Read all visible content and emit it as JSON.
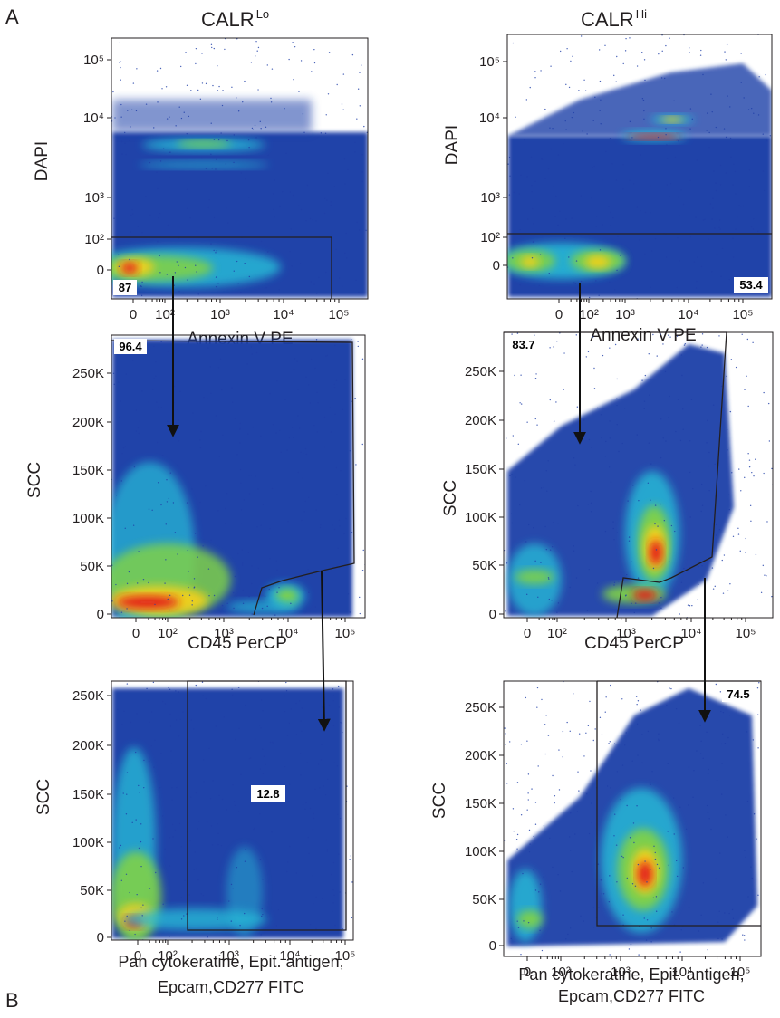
{
  "figure": {
    "panel_labels": {
      "top": "A",
      "bottom": "B"
    },
    "columns": [
      {
        "title": "CALR",
        "title_sup": "Lo"
      },
      {
        "title": "CALR",
        "title_sup": "Hi"
      }
    ]
  },
  "chart_data": [
    {
      "type": "scatter",
      "column": "CALR Lo",
      "xlabel": "Annexin V PE",
      "ylabel": "DAPI",
      "x_ticks": [
        "0",
        "10²",
        "10³",
        "10⁴",
        "10⁵"
      ],
      "y_ticks": [
        "0",
        "10²",
        "10³",
        "10⁴",
        "10⁵"
      ],
      "x_scale": "biexponential",
      "y_scale": "biexponential",
      "gate_value": "87",
      "gate_value_position": "bottom-left"
    },
    {
      "type": "scatter",
      "column": "CALR Hi",
      "xlabel": "Annexin V PE",
      "ylabel": "DAPI",
      "x_ticks": [
        "0",
        "10²",
        "10³",
        "10⁴",
        "10⁵"
      ],
      "y_ticks": [
        "0",
        "10²",
        "10³",
        "10⁴",
        "10⁵"
      ],
      "x_scale": "biexponential",
      "y_scale": "biexponential",
      "gate_value": "53.4",
      "gate_value_position": "bottom-right"
    },
    {
      "type": "scatter",
      "column": "CALR Lo",
      "xlabel": "CD45 PerCP",
      "ylabel": "SCC",
      "x_ticks": [
        "0",
        "10²",
        "10³",
        "10⁴",
        "10⁵"
      ],
      "y_ticks": [
        "0",
        "50K",
        "100K",
        "150K",
        "200K",
        "250K"
      ],
      "x_scale": "biexponential",
      "y_scale": "linear",
      "gate_value": "96.4",
      "gate_value_position": "top-left"
    },
    {
      "type": "scatter",
      "column": "CALR Hi",
      "xlabel": "CD45 PerCP",
      "ylabel": "SCC",
      "x_ticks": [
        "0",
        "10²",
        "10³",
        "10⁴",
        "10⁵"
      ],
      "y_ticks": [
        "0",
        "50K",
        "100K",
        "150K",
        "200K",
        "250K"
      ],
      "x_scale": "biexponential",
      "y_scale": "linear",
      "gate_value": "83.7",
      "gate_value_position": "top-left"
    },
    {
      "type": "scatter",
      "column": "CALR Lo",
      "xlabel_lines": [
        "Pan cytokeratine, Epit. antigen,",
        "Epcam,CD277 FITC"
      ],
      "ylabel": "SCC",
      "x_ticks": [
        "0",
        "10²",
        "10³",
        "10⁴",
        "10⁵"
      ],
      "y_ticks": [
        "0",
        "50K",
        "100K",
        "150K",
        "200K",
        "250K"
      ],
      "x_scale": "biexponential",
      "y_scale": "linear",
      "gate_value": "12.8",
      "gate_value_position": "center"
    },
    {
      "type": "scatter",
      "column": "CALR Hi",
      "xlabel_lines": [
        "Pan cytokeratine, Epit. antigen,",
        "Epcam,CD277 FITC"
      ],
      "ylabel": "SCC",
      "x_ticks": [
        "0",
        "10²",
        "10³",
        "10⁴",
        "10⁵"
      ],
      "y_ticks": [
        "0",
        "50K",
        "100K",
        "150K",
        "200K",
        "250K"
      ],
      "x_scale": "biexponential",
      "y_scale": "linear",
      "gate_value": "74.5",
      "gate_value_position": "top-right"
    }
  ],
  "colors": {
    "density_low": "#1f3fa8",
    "density_mid": "#27b8d6",
    "density_midhigh": "#7fd14a",
    "density_high": "#f2d01a",
    "density_peak": "#e31a1c"
  }
}
